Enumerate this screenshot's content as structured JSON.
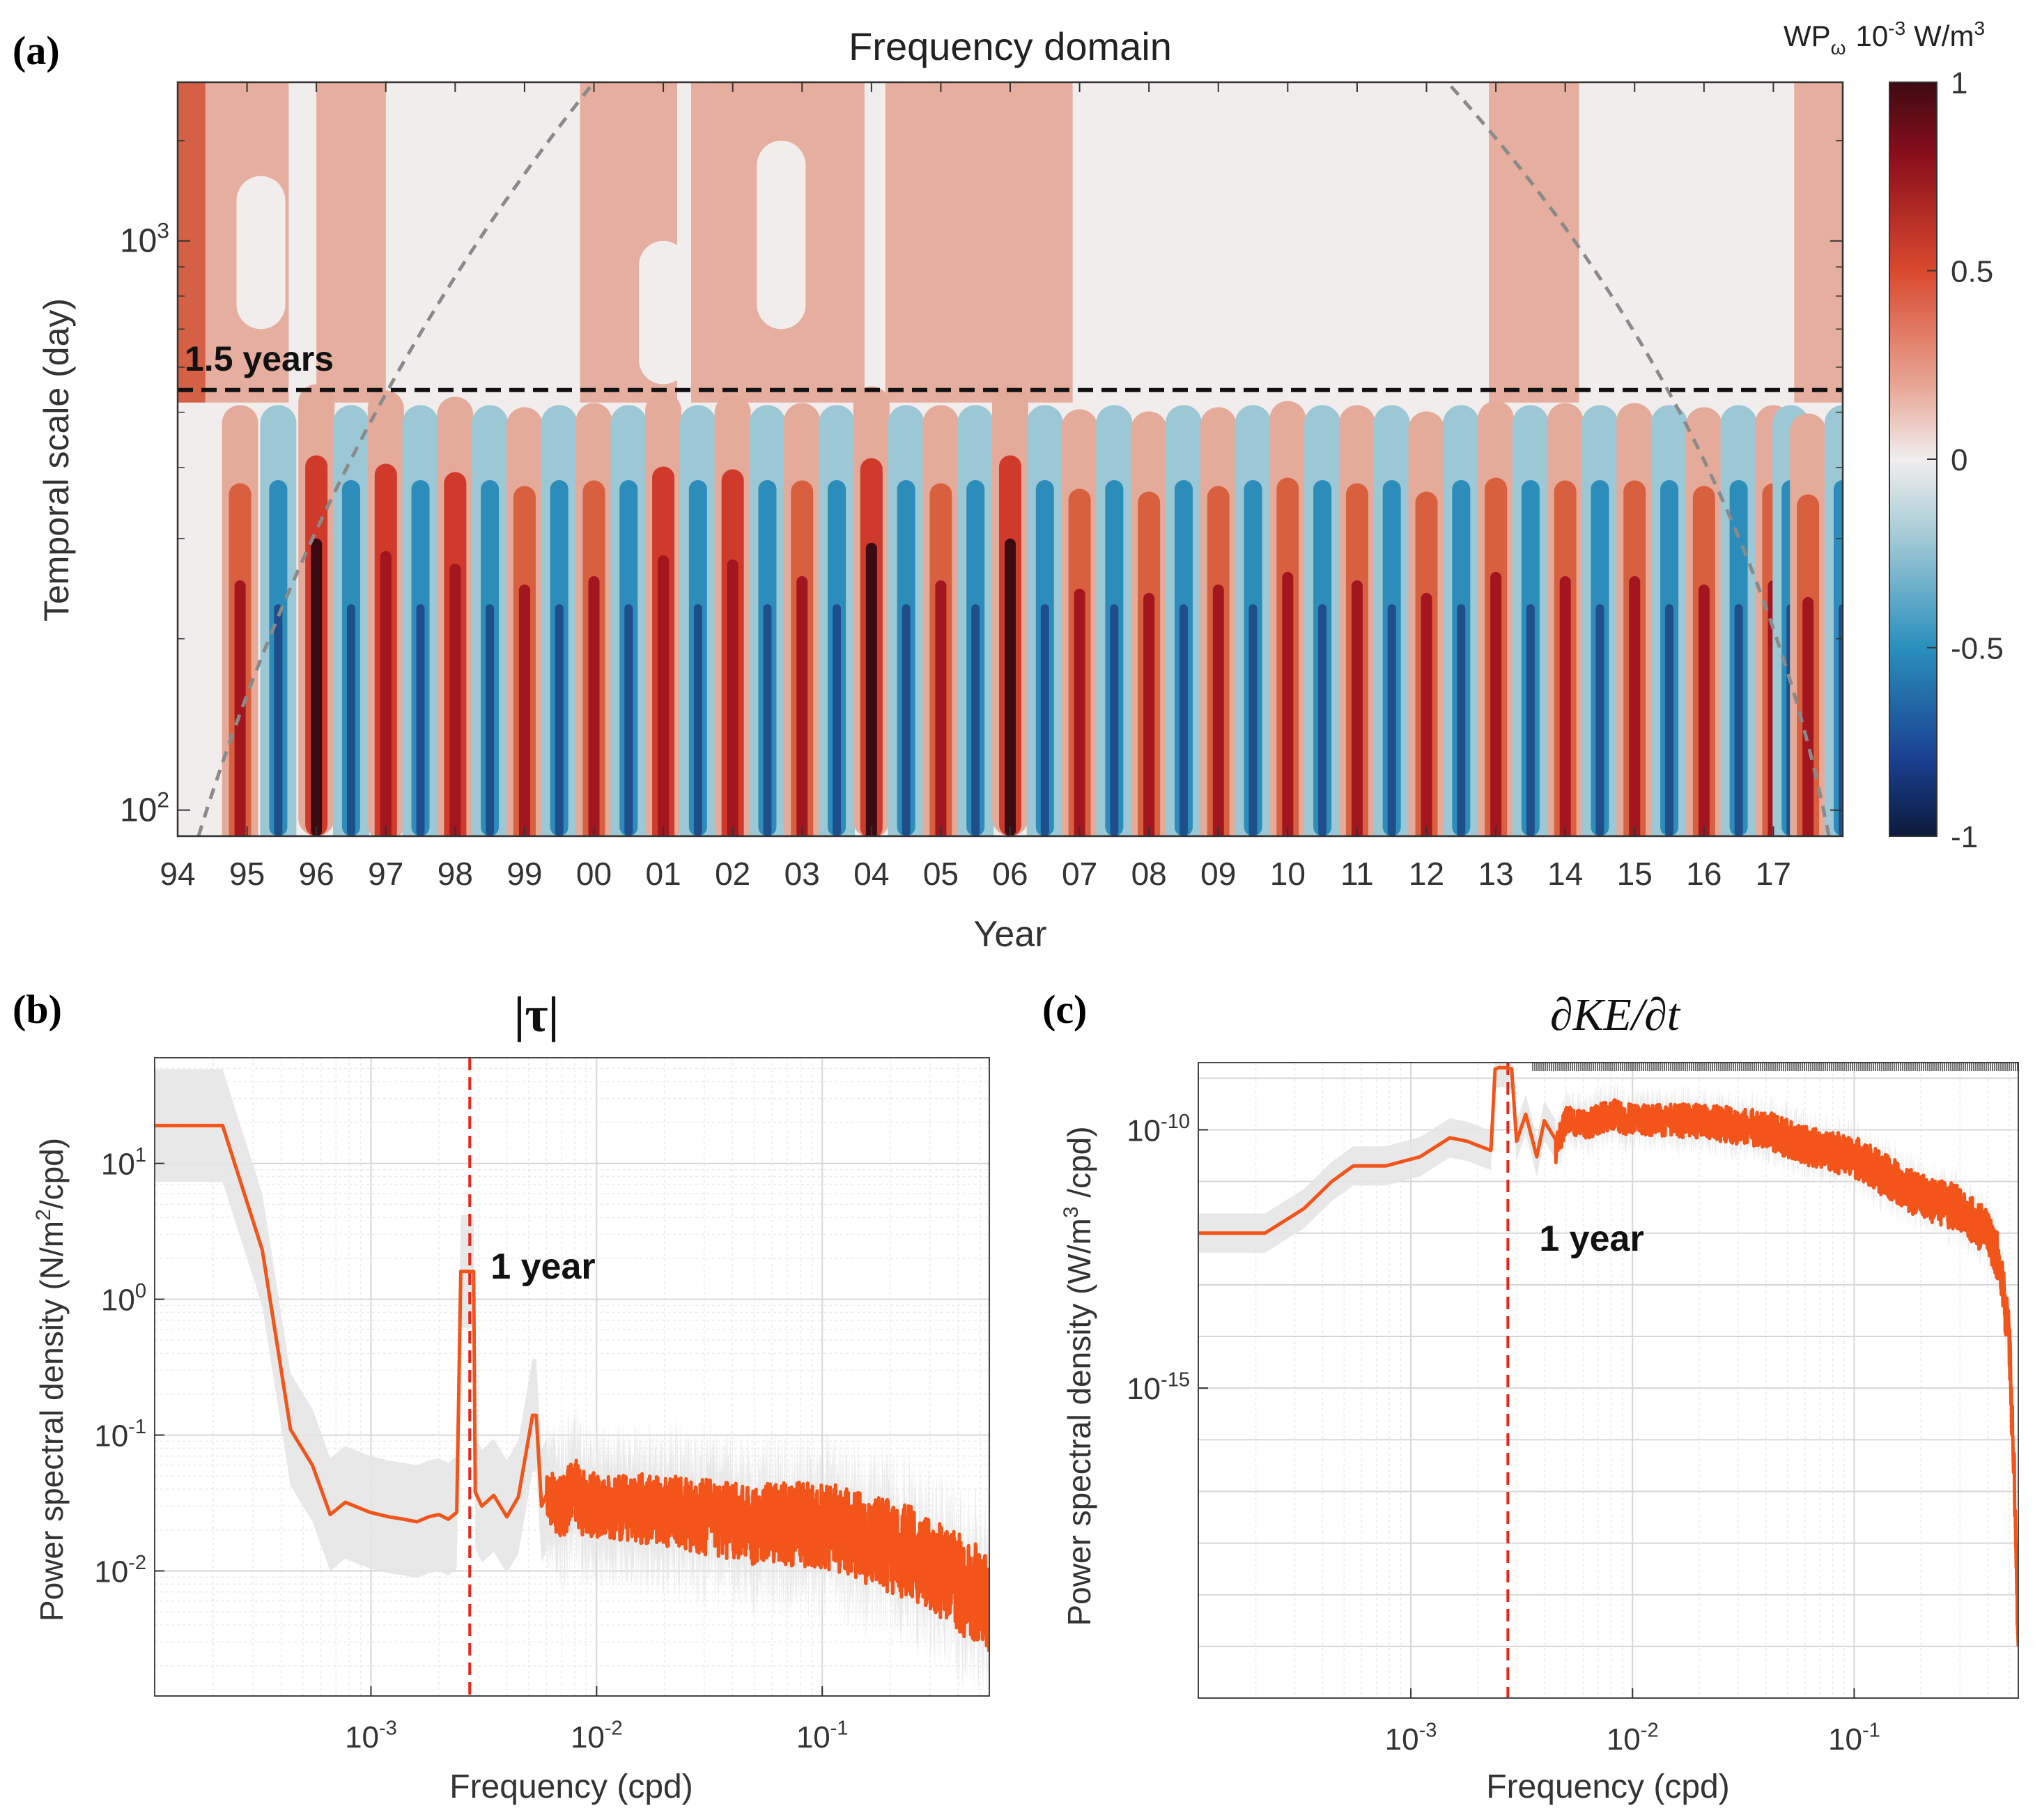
{
  "chart_data": [
    {
      "id": "a",
      "type": "heatmap",
      "panel_label": "(a)",
      "title": "Frequency domain",
      "xlabel": "Year",
      "ylabel": "Temporal scale (day)",
      "x_ticks": [
        "94",
        "95",
        "96",
        "97",
        "98",
        "99",
        "00",
        "01",
        "02",
        "03",
        "04",
        "05",
        "06",
        "07",
        "08",
        "09",
        "10",
        "11",
        "12",
        "13",
        "14",
        "15",
        "16",
        "17"
      ],
      "y_ticks": [
        {
          "value": 100,
          "base": "10",
          "exp": "2"
        },
        {
          "value": 1000,
          "base": "10",
          "exp": "3"
        }
      ],
      "ylim": [
        90,
        1900
      ],
      "xlim": [
        1994.0,
        2018.0
      ],
      "colorbar": {
        "label": "WP",
        "label_sub": "ω",
        "units_prefix": "10",
        "units_exp": "-3",
        "units": "W/m",
        "units_exp2": "3",
        "ticks": [
          "1",
          "0.5",
          "0",
          "-0.5",
          "-1"
        ],
        "range": [
          -1,
          1
        ]
      },
      "reference_line": {
        "label": "1.5 years",
        "value": 547
      },
      "peak_years": [
        1994.9,
        1996.0,
        1997.0,
        1998.0,
        1999.0,
        2000.0,
        2001.0,
        2002.0,
        2003.0,
        2004.0,
        2005.0,
        2006.0,
        2007.0,
        2008.0,
        2009.0,
        2010.0,
        2011.0,
        2012.0,
        2013.0,
        2014.0,
        2015.0,
        2016.0,
        2017.0,
        2017.5
      ],
      "peak_strength": [
        0.5,
        1.0,
        0.85,
        0.7,
        0.45,
        0.55,
        0.8,
        0.75,
        0.55,
        0.95,
        0.5,
        1.0,
        0.4,
        0.35,
        0.45,
        0.6,
        0.5,
        0.35,
        0.6,
        0.55,
        0.55,
        0.45,
        0.5,
        0.3
      ],
      "cone_of_influence": "dashed gray arcs at both edges"
    },
    {
      "id": "b",
      "type": "line",
      "panel_label": "(b)",
      "title": "|τ|",
      "xlabel": "Frequency (cpd)",
      "ylabel": "Power spectral density (N/m",
      "ylabel_exp": "2",
      "ylabel_tail": "/cpd)",
      "xscale": "log",
      "yscale": "log",
      "xlim": [
        0.00011,
        0.55
      ],
      "ylim": [
        0.0012,
        60
      ],
      "x_ticks": [
        {
          "value": 0.001,
          "base": "10",
          "exp": "-3"
        },
        {
          "value": 0.01,
          "base": "10",
          "exp": "-2"
        },
        {
          "value": 0.1,
          "base": "10",
          "exp": "-1"
        }
      ],
      "y_ticks": [
        {
          "value": 0.01,
          "base": "10",
          "exp": "-2"
        },
        {
          "value": 0.1,
          "base": "10",
          "exp": "-1"
        },
        {
          "value": 1,
          "base": "10",
          "exp": "0"
        },
        {
          "value": 10,
          "base": "10",
          "exp": "1"
        }
      ],
      "annotation": {
        "label": "1 year",
        "x": 0.00274
      },
      "series": [
        {
          "name": "PSD",
          "x": [
            0.00011,
            0.00022,
            0.00033,
            0.00044,
            0.00055,
            0.00066,
            0.00077,
            0.00099,
            0.0012,
            0.0014,
            0.0016,
            0.0018,
            0.002,
            0.0022,
            0.0024,
            0.0025,
            0.0026,
            0.00285,
            0.0029,
            0.0031,
            0.0035,
            0.004,
            0.0045,
            0.0052,
            0.0054,
            0.0057,
            0.006,
            0.007,
            0.008,
            0.0085,
            0.01,
            0.02,
            0.05,
            0.1,
            0.2,
            0.3,
            0.45,
            0.55
          ],
          "y": [
            19,
            19,
            2.3,
            0.11,
            0.06,
            0.026,
            0.032,
            0.027,
            0.025,
            0.024,
            0.023,
            0.025,
            0.026,
            0.024,
            0.027,
            1.6,
            1.6,
            1.6,
            0.038,
            0.03,
            0.036,
            0.025,
            0.035,
            0.14,
            0.14,
            0.03,
            0.035,
            0.028,
            0.042,
            0.032,
            0.03,
            0.028,
            0.022,
            0.022,
            0.015,
            0.012,
            0.007,
            0.006
          ]
        }
      ],
      "noise_start_x": 0.006
    },
    {
      "id": "c",
      "type": "line",
      "panel_label": "(c)",
      "title": "∂KE/∂t",
      "xlabel": "Frequency (cpd)",
      "ylabel": "Power spectral density (W/m",
      "ylabel_exp": "3",
      "ylabel_tail": " /cpd)",
      "xscale": "log",
      "yscale": "log",
      "xlim": [
        0.00011,
        0.55
      ],
      "ylim": [
        1e-21,
        2e-09
      ],
      "x_ticks": [
        {
          "value": 0.001,
          "base": "10",
          "exp": "-3"
        },
        {
          "value": 0.01,
          "base": "10",
          "exp": "-2"
        },
        {
          "value": 0.1,
          "base": "10",
          "exp": "-1"
        }
      ],
      "y_ticks": [
        {
          "value": 1e-10,
          "base": "10",
          "exp": "-10"
        },
        {
          "value": 1e-15,
          "base": "10",
          "exp": "-15"
        }
      ],
      "annotation": {
        "label": "1 year",
        "x": 0.00274
      },
      "series": [
        {
          "name": "PSD",
          "x": [
            0.00011,
            0.00022,
            0.00033,
            0.00044,
            0.00055,
            0.00077,
            0.0011,
            0.0015,
            0.0018,
            0.002,
            0.0023,
            0.0024,
            0.0025,
            0.0027,
            0.00285,
            0.003,
            0.0033,
            0.0037,
            0.004,
            0.0045,
            0.005,
            0.006,
            0.008,
            0.01,
            0.02,
            0.04,
            0.06,
            0.1,
            0.2,
            0.3,
            0.4,
            0.45,
            0.5,
            0.53,
            0.55
          ],
          "y": [
            1e-12,
            1e-12,
            3e-12,
            1e-11,
            2e-11,
            2e-11,
            3e-11,
            7e-11,
            6e-11,
            5e-11,
            4e-11,
            1.5e-09,
            1.6e-09,
            1.6e-09,
            1.5e-09,
            6e-11,
            2e-10,
            3e-11,
            1.5e-10,
            4e-11,
            1.5e-10,
            1.2e-10,
            2e-10,
            1.5e-10,
            1.5e-10,
            1e-10,
            5e-11,
            3e-11,
            5e-12,
            3e-12,
            1e-12,
            3e-13,
            1e-14,
            1e-17,
            1e-20
          ]
        }
      ],
      "noise_start_x": 0.0045
    }
  ]
}
